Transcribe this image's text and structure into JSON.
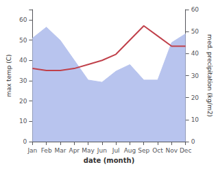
{
  "chart_data": {
    "type": "line",
    "xlabel": "date (month)",
    "ylabel": "max temp (C)",
    "y2label": "med. precipitation (kg/m2)",
    "categories": [
      "Jan",
      "Feb",
      "Mar",
      "Apr",
      "May",
      "Jun",
      "Jul",
      "Aug",
      "Sep",
      "Oct",
      "Nov",
      "Dec"
    ],
    "series": [
      {
        "type": "area",
        "axis": "y2",
        "color": "#b8c4ee",
        "values": [
          47,
          52,
          46,
          37,
          28,
          27,
          32,
          35,
          28,
          28,
          45,
          49
        ]
      },
      {
        "type": "line",
        "color": "#c0404a",
        "values": [
          36,
          35,
          35,
          36,
          38,
          40,
          43,
          50,
          57,
          52,
          47,
          47
        ]
      }
    ],
    "ylim": [
      0,
      65
    ],
    "yticks": [
      0,
      10,
      20,
      30,
      40,
      50,
      60
    ],
    "y2lim": [
      0,
      60
    ],
    "y2ticks": [
      0,
      10,
      20,
      30,
      40,
      50,
      60
    ],
    "grid": false
  }
}
